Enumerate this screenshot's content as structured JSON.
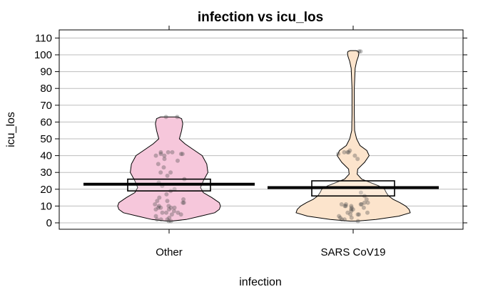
{
  "chart_data": {
    "type": "violin",
    "title": "infection vs icu_los",
    "xlabel": "infection",
    "ylabel": "icu_los",
    "categories": [
      "Other",
      "SARS CoV19"
    ],
    "ylim": [
      -4,
      115
    ],
    "yticks": [
      0,
      10,
      20,
      30,
      40,
      50,
      60,
      70,
      80,
      90,
      100,
      110
    ],
    "grid": true,
    "colors": {
      "Other": "#F6C7DB",
      "SARS CoV19": "#FCE4CC",
      "grid": "#bdbdbd",
      "mean_line": "#000000",
      "points": "#4a4a4a"
    },
    "groups": [
      {
        "name": "Other",
        "mean": 23,
        "ci": [
          19,
          26
        ],
        "violin_profile": [
          [
            1,
            0.03
          ],
          [
            2,
            0.3
          ],
          [
            4,
            0.55
          ],
          [
            6,
            0.8
          ],
          [
            8,
            0.88
          ],
          [
            10,
            0.9
          ],
          [
            12,
            0.88
          ],
          [
            15,
            0.75
          ],
          [
            18,
            0.6
          ],
          [
            21,
            0.55
          ],
          [
            25,
            0.6
          ],
          [
            30,
            0.68
          ],
          [
            35,
            0.66
          ],
          [
            40,
            0.58
          ],
          [
            43,
            0.45
          ],
          [
            47,
            0.28
          ],
          [
            50,
            0.18
          ],
          [
            55,
            0.22
          ],
          [
            59,
            0.24
          ],
          [
            62,
            0.22
          ],
          [
            63,
            0.15
          ]
        ],
        "points": [
          1,
          1,
          2,
          2,
          2,
          3,
          4,
          5,
          5,
          6,
          6,
          6,
          7,
          8,
          8,
          9,
          9,
          9,
          9,
          10,
          10,
          11,
          12,
          12,
          13,
          13,
          14,
          15,
          17,
          19,
          20,
          22,
          24,
          26,
          28,
          30,
          30,
          33,
          35,
          37,
          38,
          40,
          40,
          41,
          41,
          41,
          42,
          42,
          42,
          63,
          63
        ]
      },
      {
        "name": "SARS CoV19",
        "mean": 21,
        "ci": [
          16,
          25
        ],
        "violin_profile": [
          [
            1,
            0.05
          ],
          [
            2,
            0.4
          ],
          [
            4,
            0.8
          ],
          [
            6,
            1.0
          ],
          [
            8,
            0.98
          ],
          [
            10,
            0.92
          ],
          [
            12,
            0.82
          ],
          [
            14,
            0.7
          ],
          [
            16,
            0.62
          ],
          [
            18,
            0.58
          ],
          [
            20,
            0.55
          ],
          [
            22,
            0.45
          ],
          [
            24,
            0.3
          ],
          [
            26,
            0.15
          ],
          [
            29,
            0.07
          ],
          [
            32,
            0.08
          ],
          [
            36,
            0.2
          ],
          [
            40,
            0.28
          ],
          [
            43,
            0.24
          ],
          [
            46,
            0.12
          ],
          [
            50,
            0.06
          ],
          [
            55,
            0.025
          ],
          [
            65,
            0.02
          ],
          [
            80,
            0.02
          ],
          [
            92,
            0.035
          ],
          [
            96,
            0.06
          ],
          [
            99,
            0.09
          ],
          [
            101,
            0.1
          ],
          [
            102,
            0.09
          ],
          [
            102.5,
            0.05
          ]
        ],
        "points": [
          1,
          2,
          2,
          3,
          3,
          4,
          5,
          5,
          5,
          6,
          6,
          7,
          8,
          8,
          9,
          9,
          10,
          10,
          10,
          11,
          11,
          11,
          11,
          12,
          12,
          14,
          16,
          18,
          38,
          40,
          41,
          42,
          42,
          42,
          43,
          102,
          102
        ]
      }
    ]
  }
}
